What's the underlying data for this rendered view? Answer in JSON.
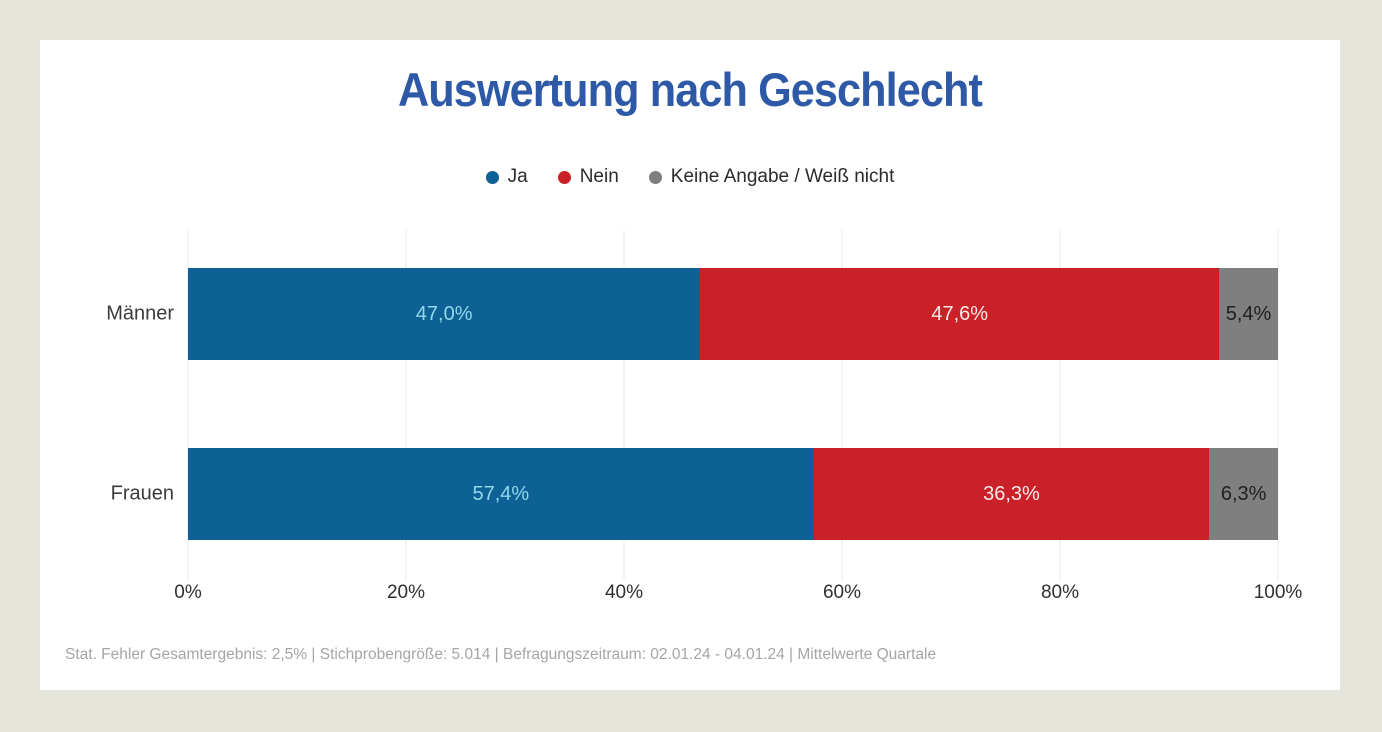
{
  "page": {
    "outer_background": "#e6e5dc",
    "card_background": "#ffffff"
  },
  "title": {
    "text": "Auswertung nach Geschlecht",
    "color": "#2e59a7"
  },
  "legend": {
    "items": [
      {
        "label": "Ja",
        "color": "#0e6194"
      },
      {
        "label": "Nein",
        "color": "#ca2027"
      },
      {
        "label": "Keine Angabe / Weiß nicht",
        "color": "#7f7f7f"
      }
    ]
  },
  "chart_data": {
    "type": "bar",
    "orientation": "horizontal",
    "stacked": true,
    "categories": [
      "Männer",
      "Frauen"
    ],
    "series": [
      {
        "name": "Ja",
        "color": "#0e6194",
        "label_color": "#90d8ea",
        "values": [
          47.0,
          57.4
        ],
        "labels": [
          "47,0%",
          "57,4%"
        ]
      },
      {
        "name": "Nein",
        "color": "#ca2027",
        "label_color": "#f5eaea",
        "values": [
          47.6,
          36.3
        ],
        "labels": [
          "47,6%",
          "36,3%"
        ]
      },
      {
        "name": "Keine Angabe / Weiß nicht",
        "color": "#7f7f7f",
        "label_color": "#202020",
        "values": [
          5.4,
          6.3
        ],
        "labels": [
          "5,4%",
          "6,3%"
        ]
      }
    ],
    "x_ticks": [
      "0%",
      "20%",
      "40%",
      "60%",
      "80%",
      "100%"
    ],
    "xlim": [
      0,
      100
    ],
    "grid": true,
    "legend_position": "top",
    "value_label_format": "german-decimal-comma-percent"
  },
  "footer": {
    "text": "Stat. Fehler Gesamtergebnis: 2,5% | Stichprobengröße: 5.014 | Befragungszeitraum: 02.01.24 - 04.01.24 | Mittelwerte Quartale"
  }
}
